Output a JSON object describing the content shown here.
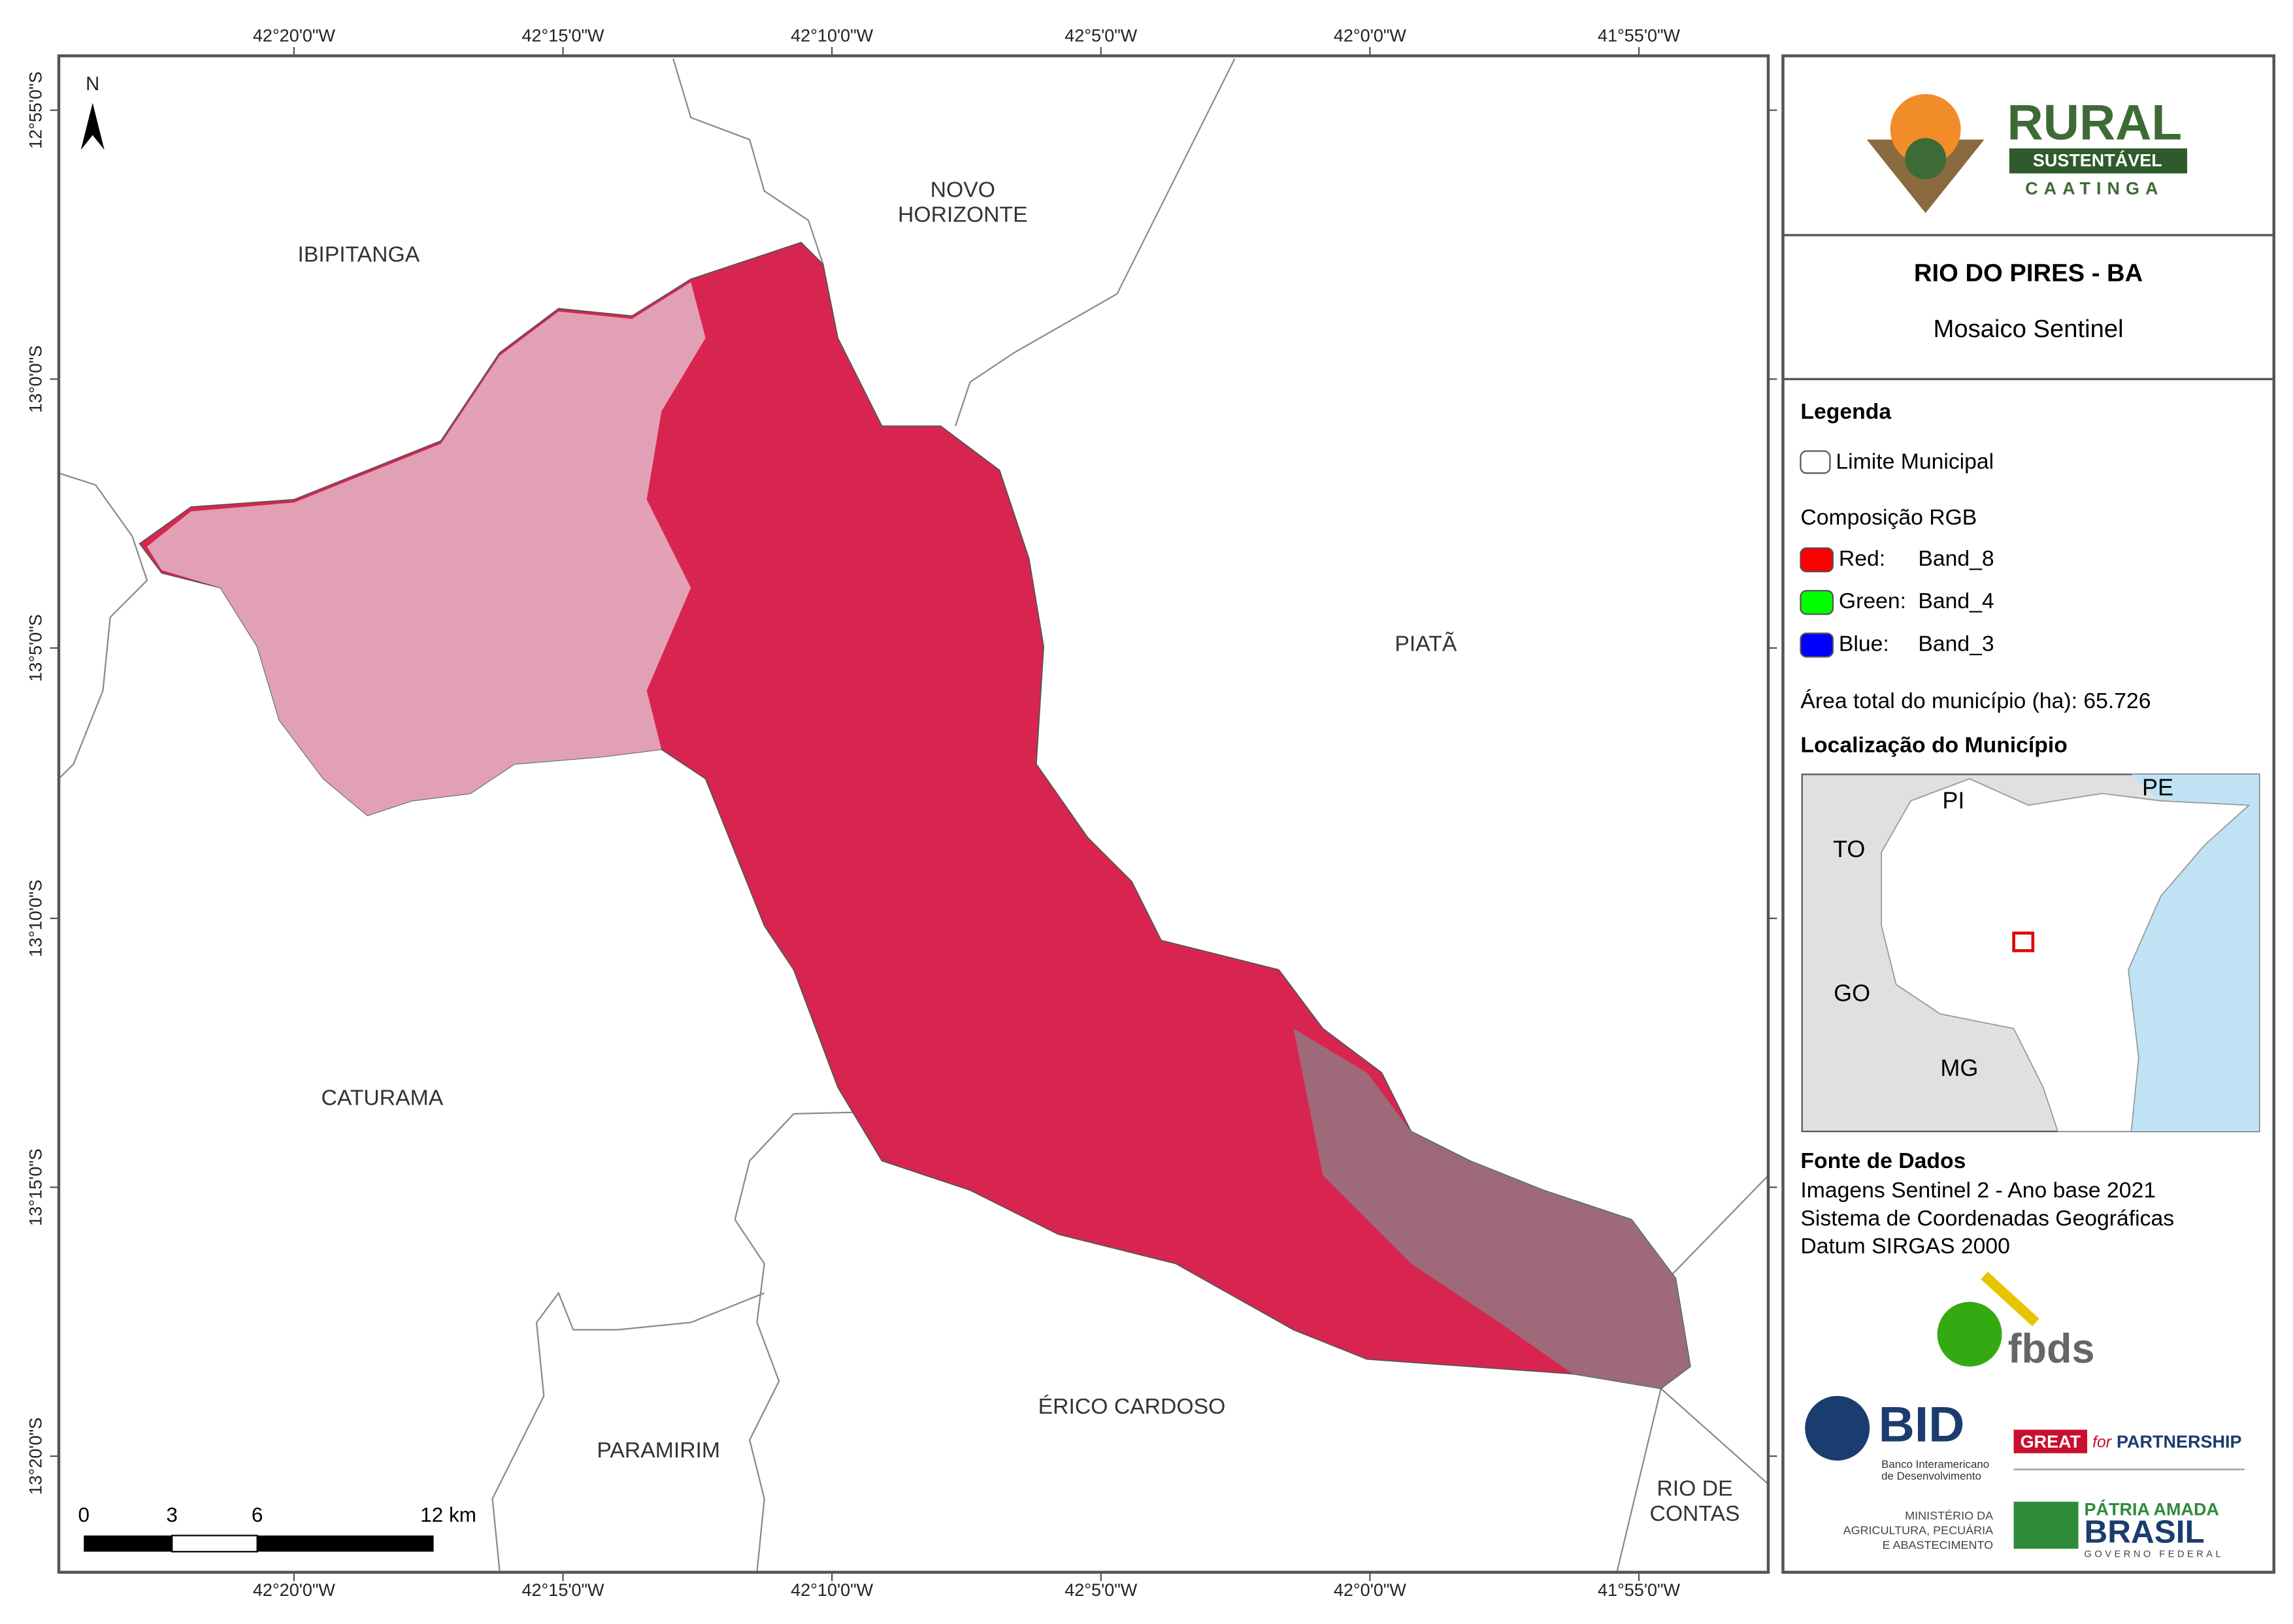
{
  "map": {
    "x_labels_top": [
      "42°20'0\"W",
      "42°15'0\"W",
      "42°10'0\"W",
      "42°5'0\"W",
      "42°0'0\"W",
      "41°55'0\"W"
    ],
    "x_labels_bottom": [
      "42°20'0\"W",
      "42°15'0\"W",
      "42°10'0\"W",
      "42°5'0\"W",
      "42°0'0\"W",
      "41°55'0\"W"
    ],
    "y_labels": [
      "12°55'0\"S",
      "13°0'0\"S",
      "13°5'0\"S",
      "13°10'0\"S",
      "13°15'0\"S",
      "13°20'0\"S"
    ],
    "north": "N",
    "places": [
      [
        "IBIPITANGA"
      ],
      [
        "NOVO",
        "HORIZONTE"
      ],
      [
        "PIATÃ"
      ],
      [
        "CATURAMA"
      ],
      [
        "ÉRICO CARDOSO"
      ],
      [
        "PARAMIRIM"
      ],
      [
        "RIO DE",
        "CONTAS"
      ]
    ],
    "scale_labels": [
      "0",
      "3",
      "6",
      "12 km"
    ]
  },
  "panel": {
    "logo": {
      "rural": "RURAL",
      "sustentavel": "SUSTENTÁVEL",
      "caatinga": "CAATINGA"
    },
    "title": "RIO DO PIRES - BA",
    "subtitle": "Mosaico Sentinel",
    "legend": {
      "title": "Legenda",
      "boundary": "Limite Municipal",
      "rgb_title": "Composição RGB",
      "bands": [
        {
          "channel": "Red:",
          "band": "Band_8",
          "color": "#ff0000"
        },
        {
          "channel": "Green:",
          "band": "Band_4",
          "color": "#00ff00"
        },
        {
          "channel": "Blue:",
          "band": "Band_3",
          "color": "#0000ff"
        }
      ]
    },
    "area": "Área total do município (ha): 65.726",
    "location_title": "Localização do Município",
    "states": [
      "PI",
      "PE",
      "TO",
      "GO",
      "MG"
    ],
    "sources_title": "Fonte de Dados",
    "sources": [
      "Imagens Sentinel 2 - Ano base 2021",
      "Sistema de Coordenadas Geográficas",
      "Datum SIRGAS 2000"
    ],
    "logos": {
      "fbds": "fbds",
      "bid": "BID",
      "bid_sub": [
        "Banco Interamericano",
        "de Desenvolvimento"
      ],
      "great": "GREAT",
      "great_for": "for",
      "great_partnership": "PARTNERSHIP",
      "ministry": [
        "MINISTÉRIO DA",
        "AGRICULTURA, PECUÁRIA",
        "E ABASTECIMENTO"
      ],
      "patria": "PÁTRIA AMADA",
      "brasil": "BRASIL",
      "governo": "GOVERNO FEDERAL"
    }
  }
}
